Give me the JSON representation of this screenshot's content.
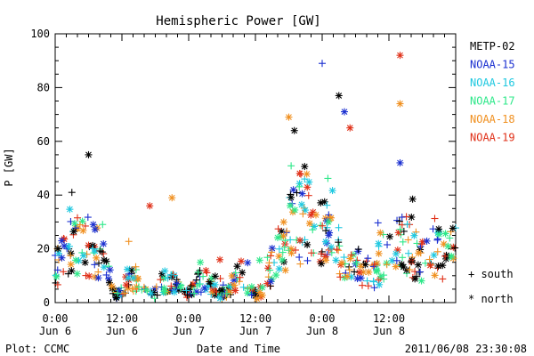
{
  "chart_data": {
    "type": "scatter",
    "title": "Hemispheric Power [GW]",
    "ylabel": "P [GW]",
    "xlabel": "Date and Time",
    "ylim": [
      0,
      100
    ],
    "y_ticks": [
      "0",
      "20",
      "40",
      "60",
      "80",
      "100"
    ],
    "xlim_hours": [
      0,
      72
    ],
    "x_ticks": [
      {
        "hour": 0,
        "time": "0:00",
        "date": "Jun 6"
      },
      {
        "hour": 12,
        "time": "12:00",
        "date": "Jun 6"
      },
      {
        "hour": 24,
        "time": "0:00",
        "date": "Jun 7"
      },
      {
        "hour": 36,
        "time": "12:00",
        "date": "Jun 7"
      },
      {
        "hour": 48,
        "time": "0:00",
        "date": "Jun 8"
      },
      {
        "hour": 60,
        "time": "12:00",
        "date": "Jun 8"
      }
    ],
    "grid": false,
    "legend_position": "right",
    "series": [
      {
        "name": "METP-02",
        "color": "#000000"
      },
      {
        "name": "NOAA-15",
        "color": "#1a2fd0"
      },
      {
        "name": "NOAA-16",
        "color": "#1ec8e0"
      },
      {
        "name": "NOAA-17",
        "color": "#2ee88a"
      },
      {
        "name": "NOAA-18",
        "color": "#f09020"
      },
      {
        "name": "NOAA-19",
        "color": "#e03018"
      }
    ],
    "marker_legend": [
      {
        "symbol": "+",
        "label": "south"
      },
      {
        "symbol": "*",
        "label": "north"
      }
    ],
    "highlight_points": [
      {
        "series": "NOAA-19",
        "x": 62,
        "y": 92,
        "marker": "north"
      },
      {
        "series": "NOAA-15",
        "x": 48,
        "y": 89,
        "marker": "south"
      },
      {
        "series": "METP-02",
        "x": 51,
        "y": 77,
        "marker": "north"
      },
      {
        "series": "NOAA-18",
        "x": 62,
        "y": 74,
        "marker": "north"
      },
      {
        "series": "NOAA-15",
        "x": 52,
        "y": 71,
        "marker": "north"
      },
      {
        "series": "NOAA-18",
        "x": 42,
        "y": 69,
        "marker": "north"
      },
      {
        "series": "NOAA-19",
        "x": 53,
        "y": 65,
        "marker": "north"
      },
      {
        "series": "METP-02",
        "x": 43,
        "y": 64,
        "marker": "north"
      },
      {
        "series": "METP-02",
        "x": 6,
        "y": 55,
        "marker": "north"
      },
      {
        "series": "NOAA-15",
        "x": 62,
        "y": 52,
        "marker": "north"
      },
      {
        "series": "METP-02",
        "x": 3,
        "y": 41,
        "marker": "south"
      },
      {
        "series": "NOAA-18",
        "x": 21,
        "y": 39,
        "marker": "north"
      },
      {
        "series": "NOAA-19",
        "x": 17,
        "y": 36,
        "marker": "north"
      }
    ]
  },
  "footer": {
    "left": "Plot: CCMC",
    "right": "2011/06/08 23:30:08"
  }
}
